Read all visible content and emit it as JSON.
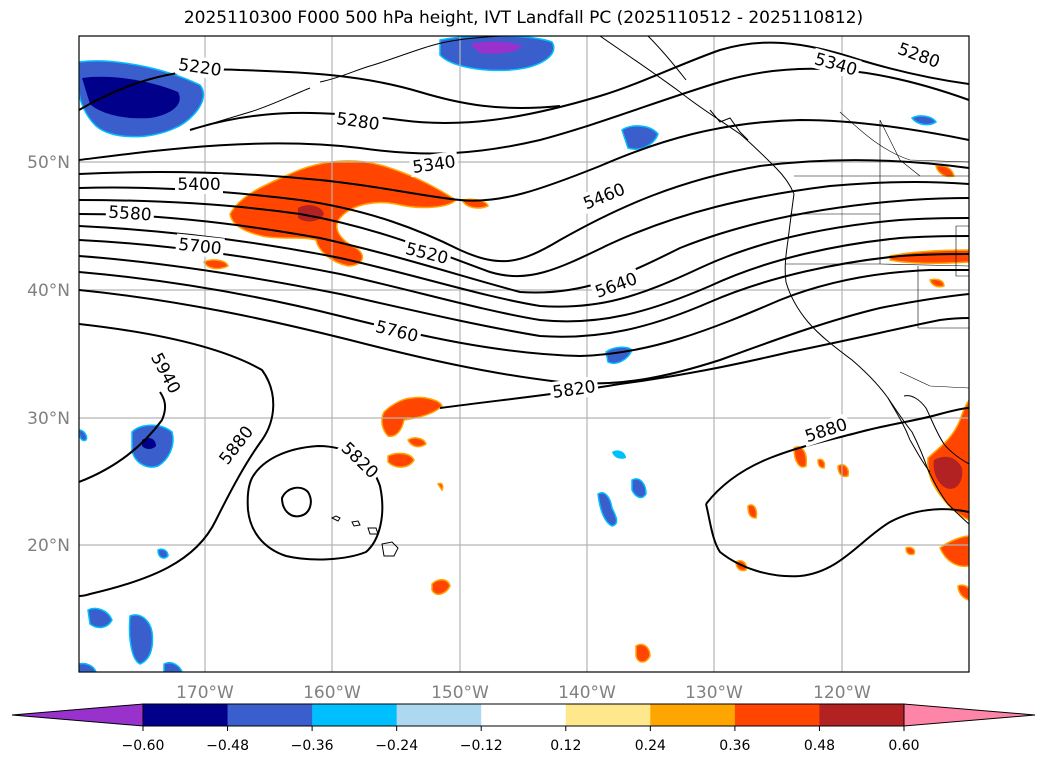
{
  "title": "2025110300 F000 500 hPa height, IVT Landfall PC (2025110512 - 2025110812)",
  "map": {
    "lat_labels": [
      "50°N",
      "40°N",
      "30°N",
      "20°N"
    ],
    "lon_labels": [
      "170°W",
      "160°W",
      "150°W",
      "140°W",
      "130°W",
      "120°W"
    ],
    "grid_color": "#b3b3b3",
    "label_color": "#808080"
  },
  "contour_labels": [
    {
      "text": "5220",
      "ix": 0
    },
    {
      "text": "5280",
      "ix": 1
    },
    {
      "text": "5340",
      "ix": 2
    },
    {
      "text": "5400",
      "ix": 3
    },
    {
      "text": "5460",
      "ix": 4
    },
    {
      "text": "5520",
      "ix": 5
    },
    {
      "text": "5580",
      "ix": 6
    },
    {
      "text": "5640",
      "ix": 7
    },
    {
      "text": "5700",
      "ix": 8
    },
    {
      "text": "5760",
      "ix": 9
    },
    {
      "text": "5820",
      "ix": 10
    },
    {
      "text": "5880",
      "ix": 11
    },
    {
      "text": "5940",
      "ix": 12
    },
    {
      "text": "5340",
      "ix": 13
    },
    {
      "text": "5280",
      "ix": 14
    },
    {
      "text": "5820",
      "ix": 15
    },
    {
      "text": "5880",
      "ix": 16
    }
  ],
  "colorbar": {
    "ticks": [
      "−0.60",
      "−0.48",
      "−0.36",
      "−0.24",
      "−0.12",
      "0.12",
      "0.24",
      "0.36",
      "0.48",
      "0.60"
    ],
    "colors": [
      "#9932cc",
      "#00008b",
      "#3a5fcd",
      "#00bfff",
      "#add8f0",
      "#ffffff",
      "#ffe88c",
      "#ffa500",
      "#ff4500",
      "#b22222",
      "#ff85a8"
    ]
  }
}
